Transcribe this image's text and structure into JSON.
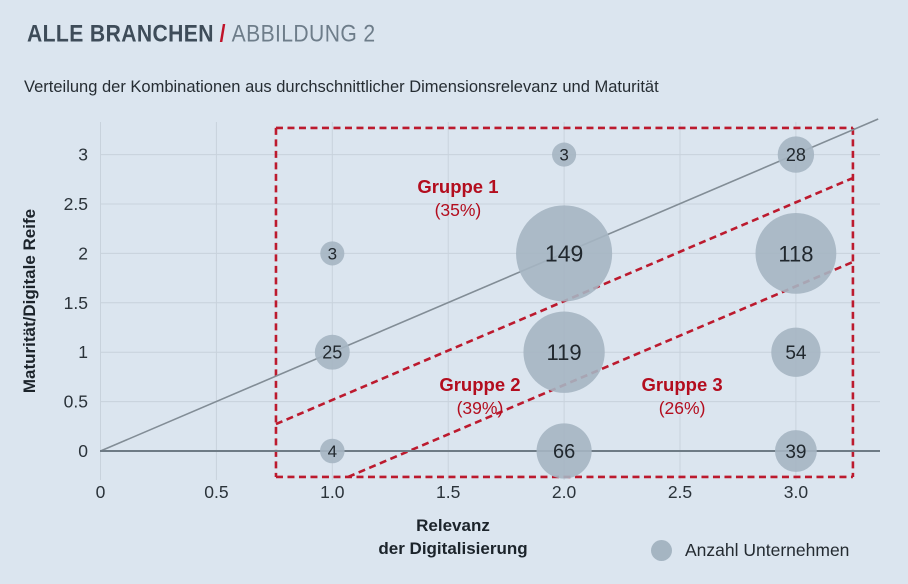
{
  "header": {
    "title_main": "ALLE BRANCHEN",
    "title_sep": "/",
    "title_sub": "ABBILDUNG 2",
    "subtitle": "Verteilung der Kombinationen aus durchschnittlicher Dimensionsrelevanz und Maturität"
  },
  "colors": {
    "background": "#dbe5ef",
    "grid": "#c8d2dc",
    "axis_line": "#6e7b85",
    "identity_line": "#828d96",
    "bubble_fill": "#a5b5c2",
    "bubble_text": "#21282e",
    "red_dash": "#bc1a2e",
    "red_label": "#b30d1e",
    "tick_text": "#2b333a"
  },
  "chart_data": {
    "type": "scatter",
    "subtype": "bubble",
    "title": "Verteilung der Kombinationen aus durchschnittlicher Dimensionsrelevanz und Maturität",
    "xlabel": "Relevanz der Digitalisierung",
    "xlabel_lines": [
      "Relevanz",
      "der Digitalisierung"
    ],
    "ylabel": "Maturität/Digitale Reife",
    "x_ticks": [
      {
        "v": 0,
        "label": "0"
      },
      {
        "v": 0.5,
        "label": "0.5"
      },
      {
        "v": 1,
        "label": "1.0"
      },
      {
        "v": 1.5,
        "label": "1.5"
      },
      {
        "v": 2,
        "label": "2.0"
      },
      {
        "v": 2.5,
        "label": "2.5"
      },
      {
        "v": 3,
        "label": "3.0"
      }
    ],
    "y_ticks": [
      {
        "v": 0,
        "label": "0"
      },
      {
        "v": 0.5,
        "label": "0.5"
      },
      {
        "v": 1,
        "label": "1"
      },
      {
        "v": 1.5,
        "label": "1.5"
      },
      {
        "v": 2,
        "label": "2"
      },
      {
        "v": 2.5,
        "label": "2.5"
      },
      {
        "v": 3,
        "label": "3"
      }
    ],
    "xlim": [
      0,
      3.36
    ],
    "ylim": [
      -0.3,
      3.33
    ],
    "grid": true,
    "bubbles": [
      {
        "x": 1,
        "y": 0,
        "n": 4
      },
      {
        "x": 2,
        "y": 0,
        "n": 66
      },
      {
        "x": 3,
        "y": 0,
        "n": 39
      },
      {
        "x": 1,
        "y": 1,
        "n": 25
      },
      {
        "x": 2,
        "y": 1,
        "n": 119
      },
      {
        "x": 3,
        "y": 1,
        "n": 54
      },
      {
        "x": 1,
        "y": 2,
        "n": 3
      },
      {
        "x": 2,
        "y": 2,
        "n": 149
      },
      {
        "x": 3,
        "y": 2,
        "n": 118
      },
      {
        "x": 2,
        "y": 3,
        "n": 3
      },
      {
        "x": 3,
        "y": 3,
        "n": 28
      }
    ],
    "identity_line": {
      "from": [
        0,
        0
      ],
      "to": [
        3.355,
        3.36
      ]
    },
    "group_boundary": {
      "rect": {
        "x0": 0.757,
        "x1": 3.246,
        "y0": -0.263,
        "y1": 3.27
      },
      "diag1": {
        "from": [
          0.757,
          0.273
        ],
        "to": [
          3.246,
          2.763
        ]
      },
      "diag2": {
        "from": [
          1.068,
          -0.263
        ],
        "to": [
          3.246,
          1.913
        ]
      }
    },
    "groups": [
      {
        "label": "Gruppe 1",
        "pct": "(35%)",
        "x": 1.542,
        "y": 2.672
      },
      {
        "label": "Gruppe 2",
        "pct": "(39%)",
        "x": 1.637,
        "y": 0.668
      },
      {
        "label": "Gruppe 3",
        "pct": "(26%)",
        "x": 2.509,
        "y": 0.668
      }
    ],
    "legend": {
      "label": "Anzahl Unternehmen",
      "position": "bottom-right"
    }
  }
}
